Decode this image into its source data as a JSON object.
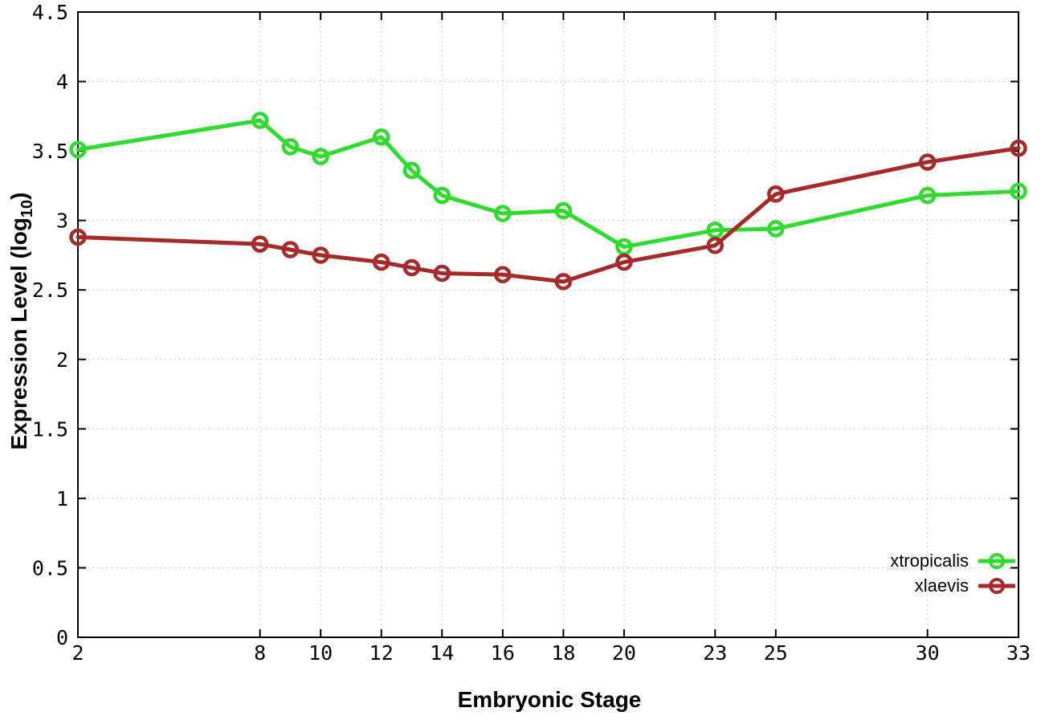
{
  "chart_data": {
    "type": "line",
    "title": "",
    "xlabel": "Embryonic Stage",
    "ylabel": "Expression Level (log10)",
    "ylabel_prefix": "Expression Level (log",
    "ylabel_sub": "10",
    "ylabel_suffix": ")",
    "x": [
      2,
      8,
      9,
      10,
      12,
      13,
      14,
      16,
      18,
      20,
      23,
      25,
      30,
      33
    ],
    "x_ticks": [
      2,
      8,
      10,
      12,
      14,
      16,
      18,
      20,
      23,
      25,
      30,
      33
    ],
    "x_tick_labels": [
      "2",
      "8",
      "10",
      "12",
      "14",
      "16",
      "18",
      "20",
      "23",
      "25",
      "30",
      "33"
    ],
    "xlim": [
      2,
      33
    ],
    "y_ticks": [
      0,
      0.5,
      1,
      1.5,
      2,
      2.5,
      3,
      3.5,
      4,
      4.5
    ],
    "y_tick_labels": [
      "0",
      "0.5",
      "1",
      "1.5",
      "2",
      "2.5",
      "3",
      "3.5",
      "4",
      "4.5"
    ],
    "ylim": [
      0,
      4.5
    ],
    "grid": true,
    "marker": "open-circle",
    "legend_position": "bottom-right-inside",
    "series": [
      {
        "name": "xtropicalis",
        "color": "#2edb2e",
        "values": [
          3.51,
          3.72,
          3.53,
          3.46,
          3.6,
          3.36,
          3.18,
          3.05,
          3.07,
          2.81,
          2.93,
          2.94,
          3.18,
          3.21
        ]
      },
      {
        "name": "xlaevis",
        "color": "#a62a2a",
        "values": [
          2.88,
          2.83,
          2.79,
          2.75,
          2.7,
          2.66,
          2.62,
          2.61,
          2.56,
          2.7,
          2.82,
          3.19,
          3.42,
          3.52
        ]
      }
    ],
    "style": {
      "frame_color": "#000000",
      "grid_color": "#bcbcbc",
      "tick_label_color": "#000000",
      "background": "#ffffff"
    }
  }
}
